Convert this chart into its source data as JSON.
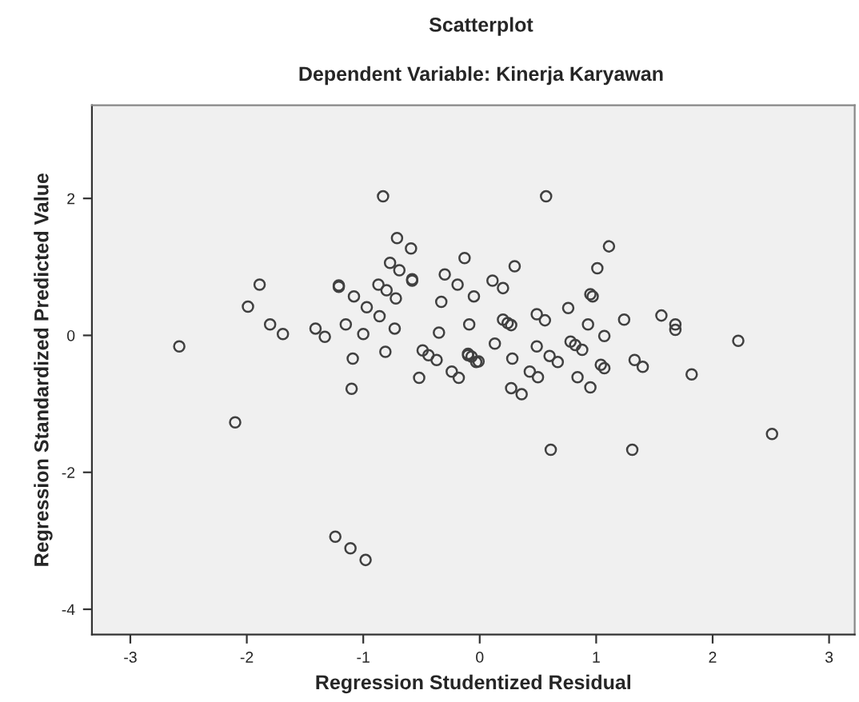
{
  "chart_data": {
    "type": "scatter",
    "title": "Scatterplot",
    "subtitle": "Dependent Variable: Kinerja Karyawan",
    "xlabel": "Regression Studentized Residual",
    "ylabel": "Regression Standardized Predicted Value",
    "marker": "circle",
    "grid": false,
    "xlim": [
      -3.33,
      3.22
    ],
    "ylim": [
      -4.37,
      3.36
    ],
    "xticks": [
      -3,
      -2,
      -1,
      0,
      1,
      2,
      3
    ],
    "yticks": [
      -4,
      -2,
      0,
      2
    ],
    "series": [
      {
        "color": "#404040",
        "x": [
          -2.58,
          -1.99,
          -1.89,
          -1.8,
          -1.69,
          -1.41,
          -1.33,
          -1.21,
          -1.21,
          -1.15,
          -1.08,
          -1.09,
          -1.0,
          -0.97,
          -0.86,
          -0.87,
          -0.83,
          -0.8,
          -0.77,
          -0.72,
          -0.73,
          -0.81,
          -0.71,
          -0.69,
          -0.59,
          -0.58,
          -0.58,
          -0.49,
          -0.44,
          -0.37,
          -0.52,
          -0.35,
          -0.33,
          -0.3,
          -0.19,
          -0.13,
          -0.05,
          -0.09,
          -0.1,
          -0.1,
          -0.03,
          -0.24,
          -0.18,
          -1.1,
          -2.1,
          -1.24,
          -1.11,
          -0.98,
          0.57,
          1.11,
          1.01,
          0.3,
          0.11,
          0.2,
          0.95,
          0.97,
          0.76,
          0.49,
          0.56,
          0.2,
          0.24,
          0.27,
          0.93,
          1.24,
          1.56,
          1.68,
          1.68,
          2.22,
          1.07,
          0.13,
          0.49,
          0.78,
          0.82,
          0.88,
          -0.07,
          -0.01,
          0.28,
          0.6,
          0.67,
          1.04,
          1.07,
          1.33,
          1.4,
          1.82,
          0.43,
          0.5,
          0.84,
          0.27,
          0.36,
          0.95,
          0.61,
          1.31,
          2.51
        ],
        "values": [
          -0.16,
          0.42,
          0.74,
          0.16,
          0.02,
          0.1,
          -0.02,
          0.73,
          0.71,
          0.16,
          0.57,
          -0.34,
          0.02,
          0.41,
          0.28,
          0.74,
          2.03,
          0.66,
          1.06,
          0.54,
          0.1,
          -0.24,
          1.42,
          0.95,
          1.27,
          0.82,
          0.8,
          -0.22,
          -0.29,
          -0.36,
          -0.62,
          0.04,
          0.49,
          0.89,
          0.74,
          1.13,
          0.57,
          0.16,
          -0.29,
          -0.27,
          -0.39,
          -0.53,
          -0.62,
          -0.78,
          -1.27,
          -2.94,
          -3.11,
          -3.28,
          2.03,
          1.3,
          0.98,
          1.01,
          0.8,
          0.69,
          0.6,
          0.57,
          0.4,
          0.31,
          0.22,
          0.23,
          0.18,
          0.15,
          0.16,
          0.23,
          0.29,
          0.16,
          0.08,
          -0.08,
          -0.01,
          -0.12,
          -0.16,
          -0.09,
          -0.14,
          -0.21,
          -0.31,
          -0.38,
          -0.34,
          -0.3,
          -0.39,
          -0.43,
          -0.48,
          -0.36,
          -0.46,
          -0.57,
          -0.53,
          -0.61,
          -0.61,
          -0.77,
          -0.86,
          -0.76,
          -1.67,
          -1.67,
          -1.44
        ]
      }
    ]
  }
}
